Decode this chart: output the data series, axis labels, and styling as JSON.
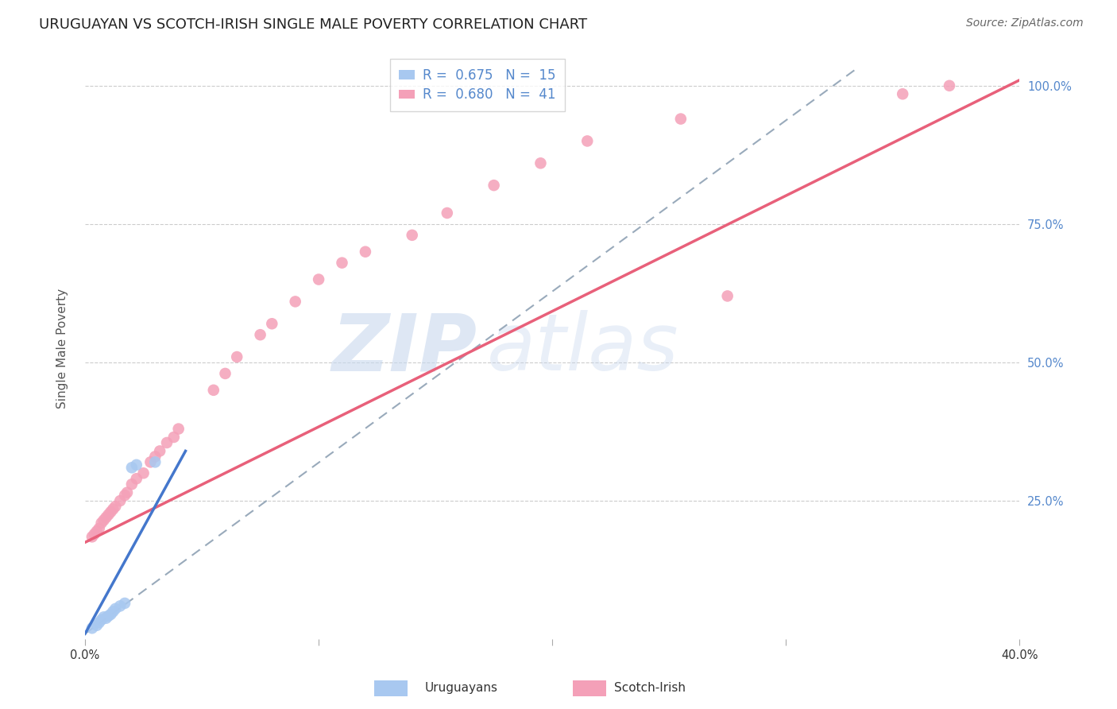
{
  "title": "URUGUAYAN VS SCOTCH-IRISH SINGLE MALE POVERTY CORRELATION CHART",
  "source": "Source: ZipAtlas.com",
  "ylabel": "Single Male Poverty",
  "xlim": [
    0.0,
    0.4
  ],
  "ylim": [
    0.0,
    1.05
  ],
  "grid_color": "#cccccc",
  "background_color": "#ffffff",
  "uruguayan_color": "#a8c8f0",
  "scotch_irish_color": "#f4a0b8",
  "uruguayan_line_color": "#4477cc",
  "scotch_irish_line_color": "#e8607a",
  "dashed_line_color": "#99aabb",
  "legend_r_uruguayan": "0.675",
  "legend_n_uruguayan": "15",
  "legend_r_scotch_irish": "0.680",
  "legend_n_scotch_irish": "41",
  "watermark_zip": "ZIP",
  "watermark_atlas": "atlas",
  "right_tick_color": "#5588cc",
  "uruguayan_x": [
    0.003,
    0.005,
    0.006,
    0.007,
    0.008,
    0.009,
    0.01,
    0.011,
    0.012,
    0.013,
    0.015,
    0.017,
    0.02,
    0.022,
    0.03
  ],
  "uruguayan_y": [
    0.02,
    0.025,
    0.03,
    0.035,
    0.04,
    0.038,
    0.042,
    0.045,
    0.05,
    0.055,
    0.06,
    0.065,
    0.31,
    0.315,
    0.32
  ],
  "scotch_irish_x": [
    0.003,
    0.004,
    0.005,
    0.006,
    0.007,
    0.008,
    0.009,
    0.01,
    0.011,
    0.012,
    0.013,
    0.015,
    0.017,
    0.018,
    0.02,
    0.022,
    0.025,
    0.028,
    0.03,
    0.032,
    0.035,
    0.038,
    0.04,
    0.055,
    0.06,
    0.065,
    0.075,
    0.08,
    0.09,
    0.1,
    0.11,
    0.12,
    0.14,
    0.155,
    0.175,
    0.195,
    0.215,
    0.255,
    0.275,
    0.35,
    0.37
  ],
  "scotch_irish_y": [
    0.185,
    0.19,
    0.195,
    0.2,
    0.21,
    0.215,
    0.22,
    0.225,
    0.23,
    0.235,
    0.24,
    0.25,
    0.26,
    0.265,
    0.28,
    0.29,
    0.3,
    0.32,
    0.33,
    0.34,
    0.355,
    0.365,
    0.38,
    0.45,
    0.48,
    0.51,
    0.55,
    0.57,
    0.61,
    0.65,
    0.68,
    0.7,
    0.73,
    0.77,
    0.82,
    0.86,
    0.9,
    0.94,
    0.62,
    0.985,
    1.0
  ],
  "si_line_x0": 0.0,
  "si_line_y0": 0.175,
  "si_line_x1": 0.4,
  "si_line_y1": 1.01,
  "uy_line_x0": 0.0,
  "uy_line_y0": 0.01,
  "uy_line_x1": 0.043,
  "uy_line_y1": 0.34,
  "dash_line_x0": 0.0,
  "dash_line_y0": 0.01,
  "dash_line_x1": 0.33,
  "dash_line_y1": 1.03,
  "marker_size": 110,
  "title_fontsize": 13,
  "label_fontsize": 11,
  "tick_fontsize": 10.5,
  "legend_fontsize": 12
}
